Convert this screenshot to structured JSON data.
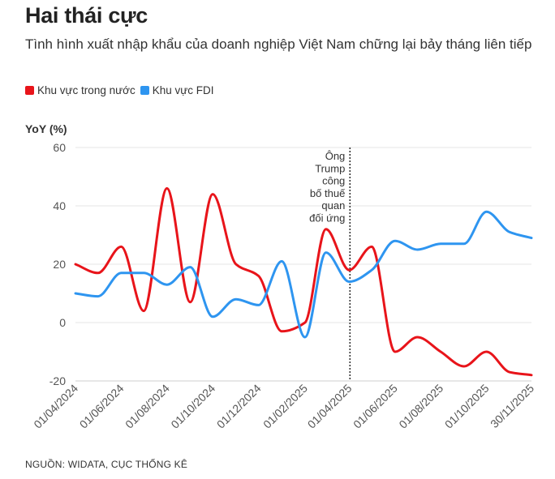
{
  "title": "Hai thái cực",
  "subtitle": "Tình hình xuất nhập khẩu của doanh nghiệp Việt Nam chững lại bảy tháng liên tiếp",
  "source": "NGUỒN: WIDATA, CỤC THỐNG KÊ",
  "chart_data": {
    "type": "line",
    "ylabel": "YoY (%)",
    "ylim": [
      -20,
      60
    ],
    "yticks": [
      60,
      40,
      20,
      0,
      -20
    ],
    "xlim": [
      "2024-04-01",
      "2025-11-30"
    ],
    "xticks": [
      "01/04/2024",
      "01/06/2024",
      "01/08/2024",
      "01/10/2024",
      "01/12/2024",
      "01/02/2025",
      "01/04/2025",
      "01/06/2025",
      "01/08/2025",
      "01/10/2025",
      "30/11/2025"
    ],
    "legend_position": "top-left",
    "grid": "horizontal",
    "series": [
      {
        "name": "Khu vực trong nước",
        "color": "#e8141a",
        "points": [
          [
            "2024-04-01",
            20
          ],
          [
            "2024-05-01",
            17
          ],
          [
            "2024-06-01",
            26
          ],
          [
            "2024-07-01",
            4
          ],
          [
            "2024-08-01",
            46
          ],
          [
            "2024-09-01",
            7
          ],
          [
            "2024-10-01",
            44
          ],
          [
            "2024-11-01",
            20
          ],
          [
            "2024-12-01",
            16
          ],
          [
            "2025-01-01",
            -3
          ],
          [
            "2025-02-01",
            0
          ],
          [
            "2025-03-01",
            32
          ],
          [
            "2025-04-01",
            18
          ],
          [
            "2025-05-01",
            26
          ],
          [
            "2025-06-01",
            -10
          ],
          [
            "2025-07-01",
            -5
          ],
          [
            "2025-08-01",
            -10
          ],
          [
            "2025-09-01",
            -15
          ],
          [
            "2025-10-01",
            -10
          ],
          [
            "2025-11-01",
            -17
          ],
          [
            "2025-11-30",
            -18
          ]
        ]
      },
      {
        "name": "Khu vực FDI",
        "color": "#2e95f0",
        "points": [
          [
            "2024-04-01",
            10
          ],
          [
            "2024-05-01",
            9
          ],
          [
            "2024-06-01",
            17
          ],
          [
            "2024-07-01",
            17
          ],
          [
            "2024-08-01",
            13
          ],
          [
            "2024-09-01",
            19
          ],
          [
            "2024-10-01",
            2
          ],
          [
            "2024-11-01",
            8
          ],
          [
            "2024-12-01",
            6
          ],
          [
            "2025-01-01",
            21
          ],
          [
            "2025-02-01",
            -5
          ],
          [
            "2025-03-01",
            24
          ],
          [
            "2025-04-01",
            14
          ],
          [
            "2025-05-01",
            18
          ],
          [
            "2025-06-01",
            28
          ],
          [
            "2025-07-01",
            25
          ],
          [
            "2025-08-01",
            27
          ],
          [
            "2025-09-01",
            27
          ],
          [
            "2025-10-01",
            38
          ],
          [
            "2025-11-01",
            31
          ],
          [
            "2025-11-30",
            29
          ]
        ]
      }
    ],
    "annotations": [
      {
        "x": "2025-04-02",
        "lines": [
          "Ông",
          "Trump",
          "công",
          "bố thuế",
          "quan",
          "đối ứng"
        ],
        "style": "dotted-vertical"
      }
    ]
  }
}
